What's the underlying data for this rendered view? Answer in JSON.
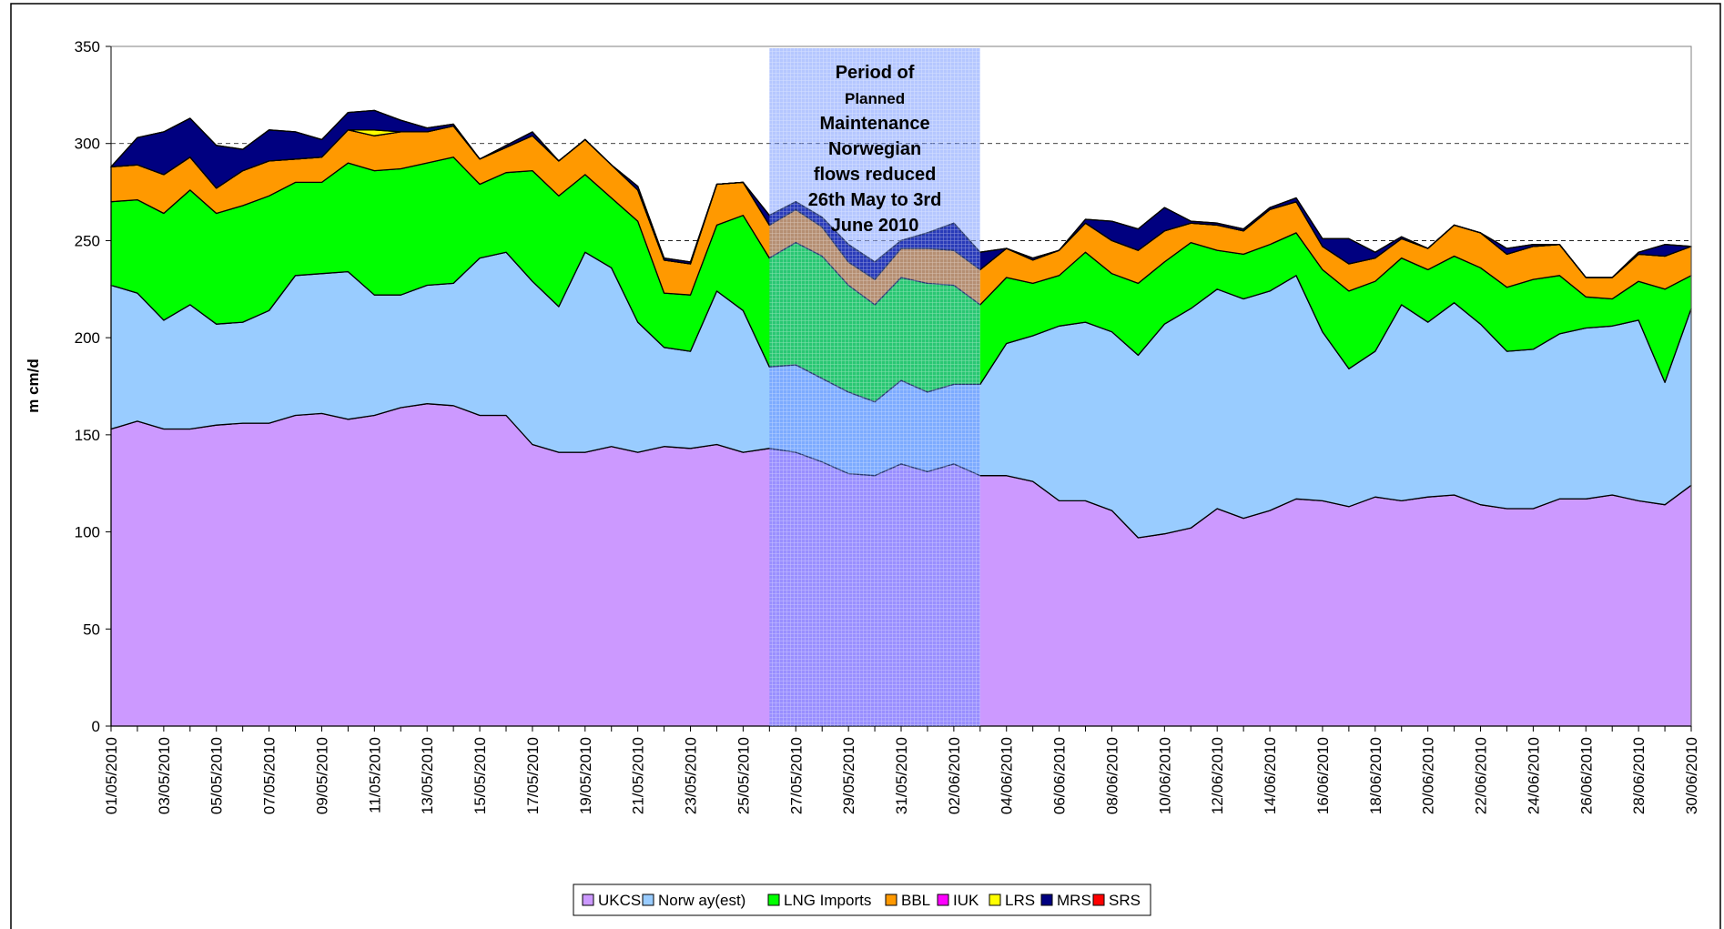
{
  "chart_data": {
    "type": "stacked_area",
    "y_label": "m cm/d",
    "annotation": [
      "Period of",
      "Planned",
      "Maintenance",
      "Norwegian",
      "flows reduced",
      "26th May to 3rd",
      "June 2010"
    ],
    "categories": [
      "01/05/2010",
      null,
      "03/05/2010",
      null,
      "05/05/2010",
      null,
      "07/05/2010",
      null,
      "09/05/2010",
      null,
      "11/05/2010",
      null,
      "13/05/2010",
      null,
      "15/05/2010",
      null,
      "17/05/2010",
      null,
      "19/05/2010",
      null,
      "21/05/2010",
      null,
      "23/05/2010",
      null,
      "25/05/2010",
      null,
      "27/05/2010",
      null,
      "29/05/2010",
      null,
      "31/05/2010",
      null,
      "02/06/2010",
      null,
      "04/06/2010",
      null,
      "06/06/2010",
      null,
      "08/06/2010",
      null,
      "10/06/2010",
      null,
      "12/06/2010",
      null,
      "14/06/2010",
      null,
      "16/06/2010",
      null,
      "18/06/2010",
      null,
      "20/06/2010",
      null,
      "22/06/2010",
      null,
      "24/06/2010",
      null,
      "26/06/2010",
      null,
      "28/06/2010",
      null,
      "30/06/2010"
    ],
    "series": [
      {
        "name": "UKCS",
        "color": "#cc99ff",
        "values": [
          153,
          157,
          153,
          153,
          155,
          156,
          156,
          160,
          161,
          158,
          160,
          164,
          166,
          165,
          160,
          160,
          145,
          141,
          141,
          144,
          141,
          144,
          143,
          145,
          141,
          143,
          141,
          136,
          130,
          129,
          135,
          131,
          135,
          129,
          129,
          126,
          116,
          116,
          111,
          97,
          99,
          102,
          112,
          107,
          111,
          117,
          116,
          113,
          118,
          116,
          118,
          119,
          114,
          112,
          112,
          117,
          117,
          119,
          116,
          114,
          124
        ]
      },
      {
        "name": "Norw ay(est)",
        "color": "#99ccff",
        "values": [
          74,
          66,
          56,
          64,
          52,
          52,
          58,
          72,
          72,
          76,
          62,
          58,
          61,
          63,
          81,
          84,
          84,
          75,
          103,
          92,
          67,
          51,
          50,
          79,
          73,
          42,
          45,
          43,
          42,
          38,
          43,
          41,
          41,
          47,
          68,
          75,
          90,
          92,
          92,
          94,
          108,
          113,
          113,
          113,
          113,
          115,
          87,
          71,
          75,
          101,
          90,
          99,
          93,
          81,
          82,
          85,
          88,
          87,
          93,
          63,
          91
        ]
      },
      {
        "name": "LNG Imports",
        "color": "#00ff00",
        "values": [
          43,
          48,
          55,
          59,
          57,
          60,
          59,
          48,
          47,
          56,
          64,
          65,
          63,
          65,
          38,
          41,
          57,
          57,
          40,
          36,
          52,
          28,
          29,
          34,
          49,
          56,
          63,
          63,
          55,
          50,
          53,
          56,
          51,
          41,
          34,
          27,
          26,
          36,
          30,
          37,
          32,
          34,
          20,
          23,
          24,
          22,
          32,
          40,
          36,
          24,
          27,
          24,
          29,
          33,
          36,
          30,
          16,
          14,
          20,
          48,
          17
        ]
      },
      {
        "name": "BBL",
        "color": "#ff9900",
        "values": [
          18,
          18,
          20,
          17,
          13,
          18,
          18,
          12,
          13,
          17,
          18,
          19,
          16,
          16,
          13,
          13,
          18,
          18,
          18,
          17,
          16,
          17,
          16,
          21,
          17,
          17,
          17,
          15,
          12,
          13,
          15,
          18,
          18,
          18,
          15,
          12,
          13,
          15,
          17,
          17,
          16,
          10,
          13,
          12,
          18,
          16,
          12,
          14,
          12,
          10,
          11,
          16,
          18,
          17,
          17,
          16,
          10,
          11,
          14,
          17,
          15
        ]
      },
      {
        "name": "IUK",
        "color": "#ff00ff",
        "values": [
          0,
          0,
          0,
          0,
          0,
          0,
          0,
          0,
          0,
          0,
          0,
          0,
          0,
          0,
          0,
          0,
          0,
          0,
          0,
          0,
          0,
          0,
          0,
          0,
          0,
          0,
          0,
          0,
          0,
          0,
          0,
          0,
          0,
          0,
          0,
          0,
          0,
          0,
          0,
          0,
          0,
          0,
          0,
          0,
          0,
          0,
          0,
          0,
          0,
          0,
          0,
          0,
          0,
          0,
          0,
          0,
          0,
          0,
          0,
          0,
          0
        ]
      },
      {
        "name": "LRS",
        "color": "#ffff00",
        "values": [
          0,
          0,
          0,
          0,
          0,
          0,
          0,
          0,
          0,
          0,
          3,
          0,
          0,
          0,
          0,
          0,
          0,
          0,
          0,
          0,
          0,
          0,
          0,
          0,
          0,
          0,
          0,
          0,
          0,
          0,
          0,
          0,
          0,
          0,
          0,
          0,
          0,
          0,
          0,
          0,
          0,
          0,
          0,
          0,
          0,
          0,
          0,
          0,
          0,
          0,
          0,
          0,
          0,
          0,
          0,
          0,
          0,
          0,
          0,
          0,
          0
        ]
      },
      {
        "name": "MRS",
        "color": "#000080",
        "values": [
          0,
          14,
          22,
          20,
          22,
          11,
          16,
          14,
          9,
          9,
          10,
          6,
          2,
          1,
          0,
          1,
          2,
          0,
          0,
          0,
          2,
          1,
          1,
          0,
          0,
          5,
          4,
          5,
          9,
          9,
          4,
          8,
          14,
          9,
          0,
          1,
          0,
          2,
          10,
          11,
          12,
          1,
          1,
          1,
          1,
          2,
          4,
          13,
          3,
          1,
          0,
          0,
          0,
          3,
          1,
          0,
          0,
          0,
          1,
          6,
          0
        ]
      },
      {
        "name": "SRS",
        "color": "#ff0000",
        "values": [
          0,
          0,
          0,
          0,
          0,
          0,
          0,
          0,
          0,
          0,
          0,
          0,
          0,
          0,
          0,
          0,
          0,
          0,
          0,
          0,
          0,
          0,
          0,
          0,
          0,
          0,
          0,
          0,
          0,
          0,
          0,
          0,
          0,
          0,
          0,
          0,
          0,
          0,
          0,
          0,
          0,
          0,
          0,
          0,
          0,
          0,
          0,
          0,
          0,
          0,
          0,
          0,
          0,
          0,
          0,
          0,
          0,
          0,
          0,
          0,
          0
        ]
      }
    ],
    "ylim": [
      0,
      350
    ],
    "yticks": [
      0,
      50,
      100,
      150,
      200,
      250,
      300,
      350
    ],
    "grid": true,
    "legend": "bottom"
  }
}
